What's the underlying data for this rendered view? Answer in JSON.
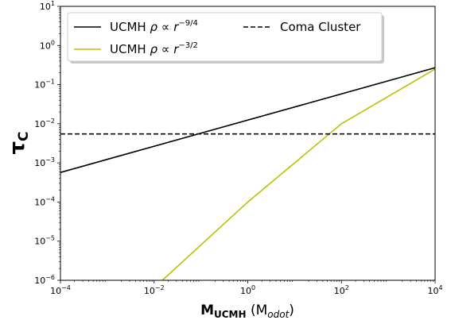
{
  "chart_data": {
    "type": "line",
    "title": "",
    "xlabel": "M_UCMH (M_odot)",
    "ylabel": "τ_C",
    "xscale": "log",
    "yscale": "log",
    "xlim": [
      0.0001,
      10000
    ],
    "ylim": [
      1e-06,
      10
    ],
    "grid": false,
    "legend_position": "top-left",
    "x_ticks": [
      {
        "value": 0.0001,
        "base": "10",
        "exp": "−4"
      },
      {
        "value": 0.01,
        "base": "10",
        "exp": "−2"
      },
      {
        "value": 1,
        "base": "10",
        "exp": "0"
      },
      {
        "value": 100,
        "base": "10",
        "exp": "2"
      },
      {
        "value": 10000,
        "base": "10",
        "exp": "4"
      }
    ],
    "y_ticks": [
      {
        "value": 1e-06,
        "base": "10",
        "exp": "−6"
      },
      {
        "value": 1e-05,
        "base": "10",
        "exp": "−5"
      },
      {
        "value": 0.0001,
        "base": "10",
        "exp": "−4"
      },
      {
        "value": 0.001,
        "base": "10",
        "exp": "−3"
      },
      {
        "value": 0.01,
        "base": "10",
        "exp": "−2"
      },
      {
        "value": 0.1,
        "base": "10",
        "exp": "−1"
      },
      {
        "value": 1,
        "base": "10",
        "exp": "0"
      },
      {
        "value": 10,
        "base": "10",
        "exp": "1"
      }
    ],
    "axis_labels": {
      "x": {
        "main": "M",
        "sub": "UCMH",
        "unit_open": " (M",
        "unit_sub": "odot",
        "unit_close": ")"
      },
      "y": {
        "main": "τ",
        "sub": "C"
      }
    },
    "series": [
      {
        "name": "UCMH ρ ∝ r^−9/4",
        "legend": {
          "prefix": "UCMH ",
          "formula": "ρ ∝ r",
          "exp": "−9/4"
        },
        "color": "#000000",
        "dash": "solid",
        "x": [
          0.0001,
          10000
        ],
        "y": [
          0.00057,
          0.27
        ]
      },
      {
        "name": "UCMH ρ ∝ r^−3/2",
        "legend": {
          "prefix": "UCMH ",
          "formula": "ρ ∝ r",
          "exp": "−3/2"
        },
        "color": "#bfbf00",
        "dash": "solid",
        "x": [
          0.015,
          1,
          100,
          10000
        ],
        "y": [
          1e-06,
          0.0001,
          0.01,
          0.25
        ]
      },
      {
        "name": "Coma Cluster",
        "legend": {
          "prefix": "Coma Cluster",
          "formula": "",
          "exp": ""
        },
        "color": "#000000",
        "dash": "dashed",
        "x": [
          0.0001,
          10000
        ],
        "y": [
          0.0055,
          0.0055
        ]
      }
    ]
  }
}
